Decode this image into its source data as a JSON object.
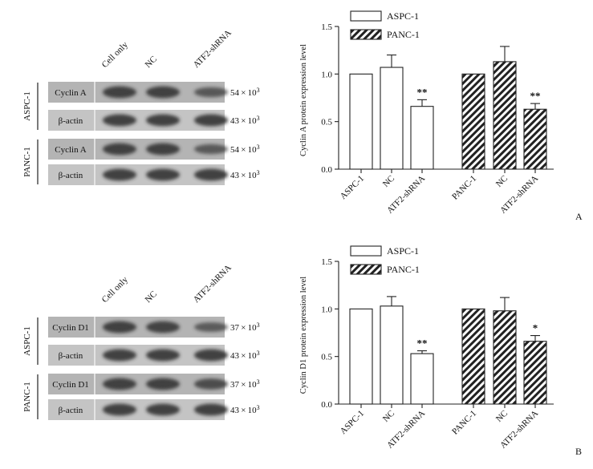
{
  "panels": [
    {
      "letter": "A",
      "blot": {
        "lanes": [
          "Cell only",
          "NC",
          "ATF2-shRNA"
        ],
        "groups": [
          {
            "name": "ASPC-1",
            "rows": [
              {
                "protein": "Cyclin A",
                "size": "54 × 10",
                "size_exp": "3",
                "intensity": [
                  1.0,
                  1.0,
                  0.62
                ]
              },
              {
                "protein": "β-actin",
                "size": "43 × 10",
                "size_exp": "3",
                "intensity": [
                  1.0,
                  1.0,
                  1.0
                ]
              }
            ]
          },
          {
            "name": "PANC-1",
            "rows": [
              {
                "protein": "Cyclin A",
                "size": "54 × 10",
                "size_exp": "3",
                "intensity": [
                  1.0,
                  1.0,
                  0.6
                ]
              },
              {
                "protein": "β-actin",
                "size": "43 × 10",
                "size_exp": "3",
                "intensity": [
                  1.0,
                  1.0,
                  1.0
                ]
              }
            ]
          }
        ]
      }
    },
    {
      "letter": "B",
      "blot": {
        "lanes": [
          "Cell only",
          "NC",
          "ATF2-shRNA"
        ],
        "groups": [
          {
            "name": "ASPC-1",
            "rows": [
              {
                "protein": "Cyclin D1",
                "size": "37 × 10",
                "size_exp": "3",
                "intensity": [
                  1.0,
                  0.95,
                  0.55
                ]
              },
              {
                "protein": "β-actin",
                "size": "43 × 10",
                "size_exp": "3",
                "intensity": [
                  1.0,
                  1.0,
                  1.0
                ]
              }
            ]
          },
          {
            "name": "PANC-1",
            "rows": [
              {
                "protein": "Cyclin D1",
                "size": "37 × 10",
                "size_exp": "3",
                "intensity": [
                  1.0,
                  1.0,
                  0.8
                ]
              },
              {
                "protein": "β-actin",
                "size": "43 × 10",
                "size_exp": "3",
                "intensity": [
                  1.0,
                  1.0,
                  1.0
                ]
              }
            ]
          }
        ]
      }
    }
  ],
  "chart_data": [
    {
      "type": "bar",
      "ylabel": "Cyclin A protein expression level",
      "ylim": [
        0.0,
        1.5
      ],
      "yticks": [
        "0.0",
        "0.5",
        "1.0",
        "1.5"
      ],
      "legend": {
        "placement": "top-left",
        "entries": [
          "ASPC-1",
          "PANC-1"
        ]
      },
      "groups": [
        {
          "series": "ASPC-1",
          "pattern": "open",
          "bars": [
            {
              "label": "ASPC-1",
              "value": 1.0,
              "error": 0.0,
              "sig": ""
            },
            {
              "label": "NC",
              "value": 1.07,
              "error": 0.13,
              "sig": ""
            },
            {
              "label": "ATF2-shRNA",
              "value": 0.66,
              "error": 0.07,
              "sig": "**"
            }
          ]
        },
        {
          "series": "PANC-1",
          "pattern": "hatched",
          "bars": [
            {
              "label": "PANC-1",
              "value": 1.0,
              "error": 0.0,
              "sig": ""
            },
            {
              "label": "NC",
              "value": 1.13,
              "error": 0.16,
              "sig": ""
            },
            {
              "label": "ATF2-shRNA",
              "value": 0.63,
              "error": 0.06,
              "sig": "**"
            }
          ]
        }
      ]
    },
    {
      "type": "bar",
      "ylabel": "Cyclin D1 protein expression level",
      "ylim": [
        0.0,
        1.5
      ],
      "yticks": [
        "0.0",
        "0.5",
        "1.0",
        "1.5"
      ],
      "legend": {
        "placement": "top-left",
        "entries": [
          "ASPC-1",
          "PANC-1"
        ]
      },
      "groups": [
        {
          "series": "ASPC-1",
          "pattern": "open",
          "bars": [
            {
              "label": "ASPC-1",
              "value": 1.0,
              "error": 0.0,
              "sig": ""
            },
            {
              "label": "NC",
              "value": 1.03,
              "error": 0.1,
              "sig": ""
            },
            {
              "label": "ATF2-shRNA",
              "value": 0.53,
              "error": 0.03,
              "sig": "**"
            }
          ]
        },
        {
          "series": "PANC-1",
          "pattern": "hatched",
          "bars": [
            {
              "label": "PANC-1",
              "value": 1.0,
              "error": 0.0,
              "sig": ""
            },
            {
              "label": "NC",
              "value": 0.98,
              "error": 0.14,
              "sig": ""
            },
            {
              "label": "ATF2-shRNA",
              "value": 0.66,
              "error": 0.06,
              "sig": "*"
            }
          ]
        }
      ]
    }
  ]
}
